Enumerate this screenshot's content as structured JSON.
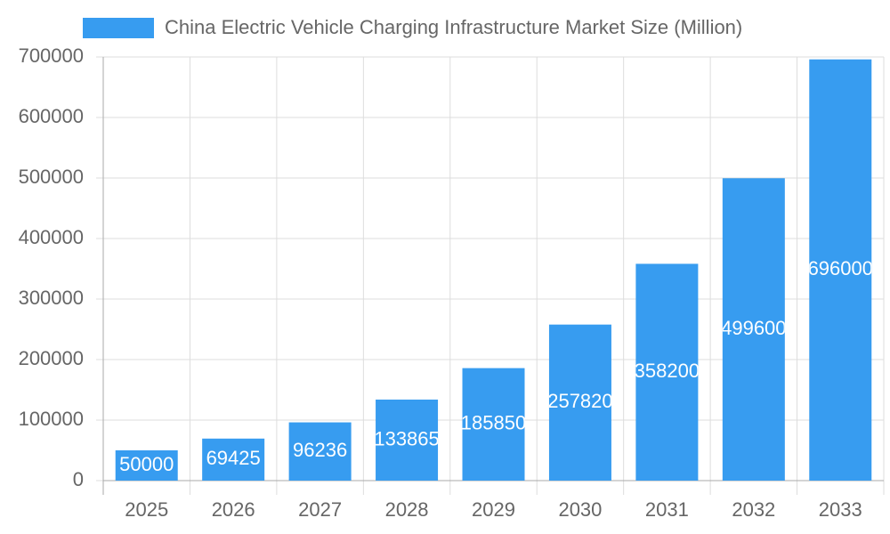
{
  "chart_data": {
    "type": "bar",
    "categories": [
      "2025",
      "2026",
      "2027",
      "2028",
      "2029",
      "2030",
      "2031",
      "2032",
      "2033"
    ],
    "series": [
      {
        "name": "China Electric Vehicle Charging Infrastructure Market Size (Million)",
        "color": "#379cf0",
        "values": [
          50000,
          69425,
          96236,
          133865,
          185850,
          257820,
          358200,
          499600,
          696000
        ]
      }
    ],
    "ylim": [
      0,
      700000
    ],
    "yticks": [
      0,
      100000,
      200000,
      300000,
      400000,
      500000,
      600000,
      700000
    ],
    "grid": true,
    "legend": "top"
  }
}
